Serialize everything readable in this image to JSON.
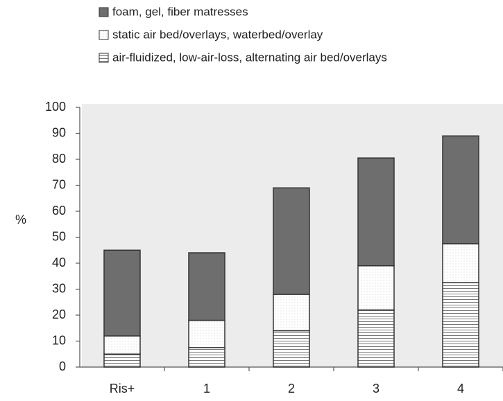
{
  "chart_data": {
    "type": "stacked_bar",
    "y_label": "%",
    "categories": [
      "Ris+",
      "1",
      "2",
      "3",
      "4"
    ],
    "series": [
      {
        "name": "air-fluidized, low-air-loss, alternating air bed/overlays",
        "color": "#ffffff",
        "pattern": "hstripes",
        "values": [
          5,
          7.5,
          14,
          22,
          32.5
        ]
      },
      {
        "name": "static air bed/overlays, waterbed/overlay",
        "color": "#ffffff",
        "pattern": "dots",
        "values": [
          7,
          10.5,
          14,
          17,
          15
        ]
      },
      {
        "name": "foam, gel, fiber matresses",
        "color": "#6e6e6e",
        "pattern": "solid",
        "values": [
          33,
          26,
          41,
          41.5,
          41.5
        ]
      }
    ],
    "ylim": [
      0,
      100
    ],
    "yticks": [
      0,
      10,
      20,
      30,
      40,
      50,
      60,
      70,
      80,
      90,
      100
    ]
  }
}
